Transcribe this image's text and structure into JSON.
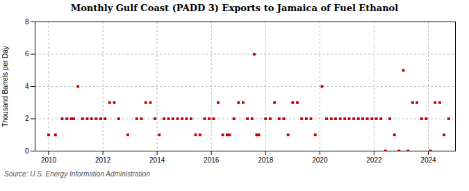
{
  "chart_data": {
    "type": "scatter",
    "title": "Monthly Gulf Coast (PADD 3) Exports to Jamaica of Fuel Ethanol",
    "ylabel": "Thousand Barrels per Day",
    "source": "Source: U.S. Energy Information Administration",
    "color": "#cc0000",
    "marker": "square",
    "grid": true,
    "xlim": [
      2009.5,
      2025.0
    ],
    "xticks": [
      2010,
      2012,
      2014,
      2016,
      2018,
      2020,
      2022,
      2024
    ],
    "ylim": [
      0,
      8
    ],
    "yticks": [
      0,
      2,
      4,
      6,
      8
    ],
    "x": [
      2010.0,
      2010.25,
      2010.5,
      2010.67,
      2010.83,
      2010.92,
      2011.08,
      2011.25,
      2011.42,
      2011.58,
      2011.75,
      2011.92,
      2012.08,
      2012.25,
      2012.42,
      2012.58,
      2012.92,
      2013.25,
      2013.42,
      2013.58,
      2013.75,
      2013.92,
      2014.08,
      2014.25,
      2014.42,
      2014.58,
      2014.75,
      2014.92,
      2015.08,
      2015.25,
      2015.42,
      2015.58,
      2015.75,
      2015.92,
      2016.08,
      2016.25,
      2016.42,
      2016.58,
      2016.67,
      2016.83,
      2017.0,
      2017.17,
      2017.33,
      2017.5,
      2017.67,
      2017.75,
      2017.58,
      2018.0,
      2018.17,
      2018.33,
      2018.5,
      2018.67,
      2018.83,
      2019.0,
      2019.17,
      2019.33,
      2019.5,
      2019.67,
      2019.83,
      2020.08,
      2020.25,
      2020.42,
      2020.58,
      2020.75,
      2020.92,
      2021.08,
      2021.25,
      2021.42,
      2021.58,
      2021.75,
      2021.92,
      2022.08,
      2022.25,
      2022.42,
      2022.58,
      2022.75,
      2022.92,
      2023.08,
      2023.25,
      2023.42,
      2023.58,
      2023.75,
      2023.92,
      2024.08,
      2024.25,
      2024.42,
      2024.58,
      2024.75
    ],
    "values": [
      1,
      1,
      2,
      2,
      2,
      2,
      4,
      2,
      2,
      2,
      2,
      2,
      2,
      3,
      3,
      2,
      1,
      2,
      2,
      3,
      3,
      2,
      1,
      2,
      2,
      2,
      2,
      2,
      2,
      2,
      1,
      1,
      2,
      2,
      2,
      3,
      1,
      1,
      1,
      2,
      3,
      3,
      2,
      2,
      1,
      1,
      6,
      2,
      2,
      3,
      2,
      2,
      1,
      3,
      3,
      2,
      2,
      2,
      1,
      4,
      2,
      2,
      2,
      2,
      2,
      2,
      2,
      2,
      2,
      2,
      2,
      2,
      2,
      0,
      2,
      1,
      0,
      5,
      0,
      3,
      3,
      2,
      2,
      0,
      3,
      3,
      1,
      2
    ]
  }
}
